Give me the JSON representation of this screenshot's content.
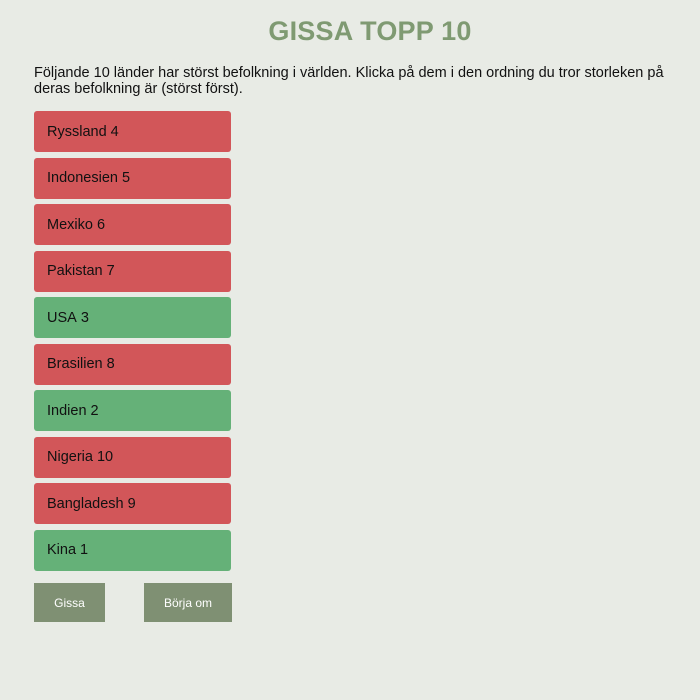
{
  "title": "GISSA TOPP 10",
  "intro": "Följande 10 länder har störst befolkning i världen. Klicka på dem i den ordning du tror storleken på deras befolkning är (störst först).",
  "colors": {
    "wrong": "#d25659",
    "right": "#65b178",
    "title": "#7f9a72",
    "button": "#7f9073",
    "background": "#e8ebe5"
  },
  "countries": [
    {
      "name": "Ryssland",
      "rank": "4",
      "status": "wrong"
    },
    {
      "name": "Indonesien",
      "rank": "5",
      "status": "wrong"
    },
    {
      "name": "Mexiko",
      "rank": "6",
      "status": "wrong"
    },
    {
      "name": "Pakistan",
      "rank": "7",
      "status": "wrong"
    },
    {
      "name": "USA",
      "rank": "3",
      "status": "right"
    },
    {
      "name": "Brasilien",
      "rank": "8",
      "status": "wrong"
    },
    {
      "name": "Indien",
      "rank": "2",
      "status": "right"
    },
    {
      "name": "Nigeria",
      "rank": "10",
      "status": "wrong"
    },
    {
      "name": "Bangladesh",
      "rank": "9",
      "status": "wrong"
    },
    {
      "name": "Kina",
      "rank": "1",
      "status": "right"
    }
  ],
  "buttons": {
    "guess": "Gissa",
    "restart": "Börja om"
  }
}
